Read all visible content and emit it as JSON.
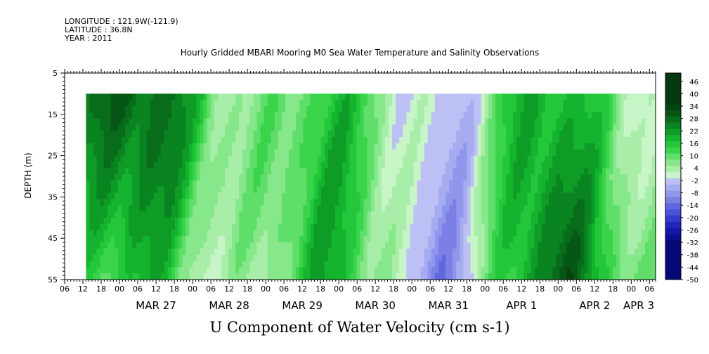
{
  "meta": {
    "longitude": "LONGITUDE : 121.9W(-121.9)",
    "latitude": "LATITUDE : 36.8N",
    "year": "YEAR : 2011"
  },
  "chart_data": {
    "type": "heatmap",
    "title": "Hourly Gridded MBARI Mooring M0 Sea Water Temperature and Salinity Observations",
    "xlabel": "U Component of Water Velocity (cm s-1)",
    "ylabel": "DEPTH (m)",
    "y_ticks": [
      5,
      15,
      25,
      35,
      45,
      55
    ],
    "ylim": [
      5,
      55
    ],
    "y_inverted": true,
    "data_depth_range": [
      10,
      55
    ],
    "x_start": "2011-03-26 06:00",
    "x_end": "2011-04-03 08:00",
    "data_start": "2011-03-26 13:00",
    "hour_tick_labels": [
      "06",
      "12",
      "18",
      "00",
      "06",
      "12",
      "18",
      "00",
      "06",
      "12",
      "18",
      "00",
      "06",
      "12",
      "18",
      "00",
      "06",
      "12",
      "18",
      "00",
      "06",
      "12",
      "18",
      "00",
      "06",
      "12",
      "18",
      "00",
      "06",
      "12",
      "18",
      "00",
      "06"
    ],
    "date_labels": [
      "MAR 27",
      "MAR 28",
      "MAR 29",
      "MAR 30",
      "MAR 31",
      "APR  1",
      "APR  2",
      "APR  3"
    ],
    "colorbar": {
      "range": [
        -50,
        50
      ],
      "step": 3,
      "tick_labels": [
        "46",
        "40",
        "34",
        "28",
        "22",
        "16",
        "10",
        "4",
        "-2",
        "-8",
        "-14",
        "-20",
        "-26",
        "-32",
        "-38",
        "-44",
        "-50"
      ]
    },
    "colors": {
      "positive": "#22dd44",
      "negative": "#8c8cee",
      "deep_positive": "#0a3a14",
      "deep_negative": "#000080"
    }
  }
}
